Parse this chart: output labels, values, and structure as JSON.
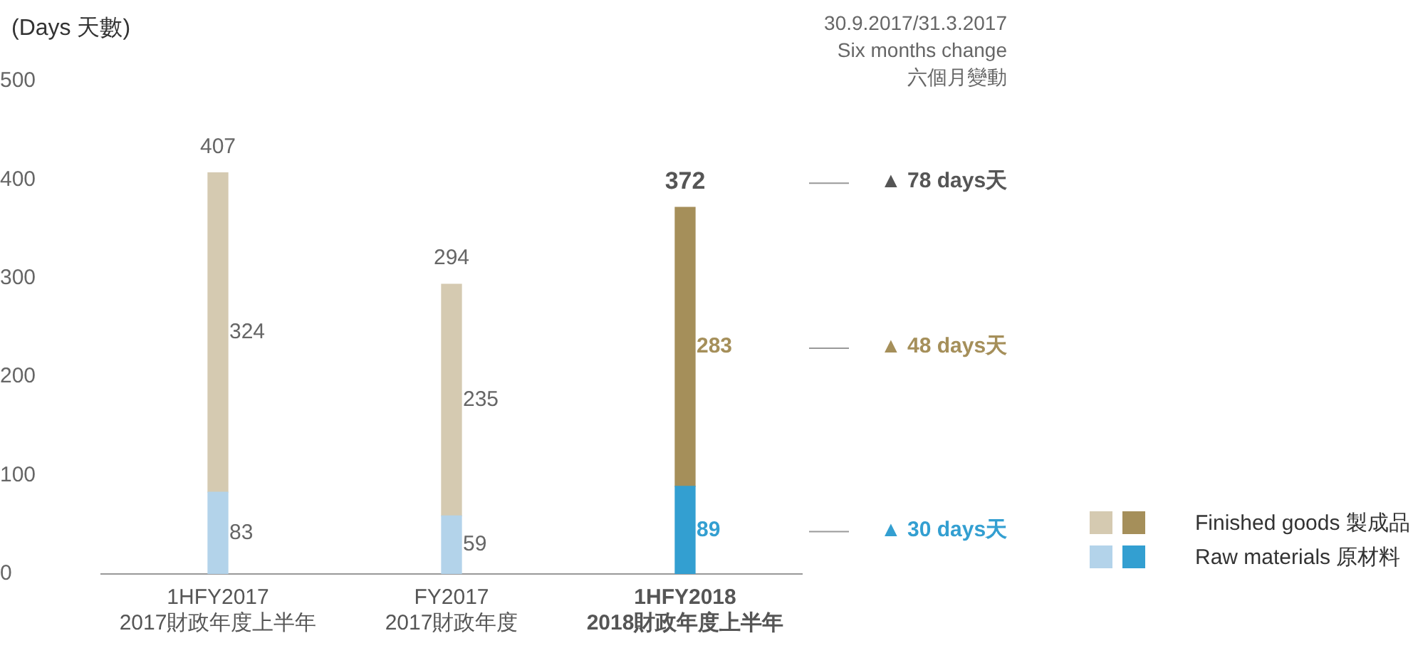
{
  "chart_data": {
    "type": "bar",
    "stacked": true,
    "ylabel": "(Days 天數)",
    "categories": [
      "1HFY2017\n2017財政年度上半年",
      "FY2017\n2017財政年度",
      "1HFY2018\n2018財政年度上半年"
    ],
    "series": [
      {
        "name": "Raw materials 原材料",
        "colors": [
          "#b3d3ea",
          "#b3d3ea",
          "#339fd1"
        ],
        "values": [
          83,
          59,
          89
        ]
      },
      {
        "name": "Finished goods 製成品",
        "colors": [
          "#d5cab1",
          "#d5cab1",
          "#a58f5a"
        ],
        "values": [
          324,
          235,
          283
        ]
      }
    ],
    "totals": [
      "407",
      "294",
      "372"
    ],
    "data_labels": true,
    "ylim": [
      0,
      500
    ],
    "yticks": [
      0,
      100,
      200,
      300,
      400,
      500
    ],
    "legend": "bottom right",
    "annotations": [
      "30.9.2017/31.3.2017\nSix months change\n六個月變動",
      "▲ 78 days天",
      "▲ 48 days天",
      "▲ 30 days天"
    ]
  }
}
